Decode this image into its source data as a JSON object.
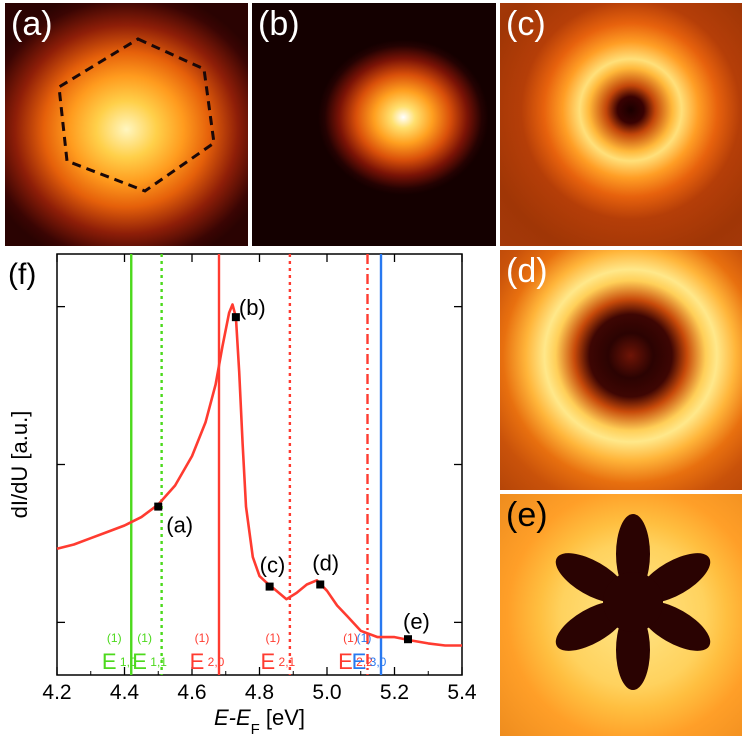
{
  "panels": {
    "a": {
      "label": "(a)"
    },
    "b": {
      "label": "(b)"
    },
    "c": {
      "label": "(c)"
    },
    "d": {
      "label": "(d)"
    },
    "e": {
      "label": "(e)"
    }
  },
  "plot_label": "(f)",
  "colors": {
    "curve": "#ff3b30",
    "green": "#4cd91c",
    "red": "#ff3b30",
    "blue": "#2878f0",
    "marker": "#000000"
  },
  "chart_data": {
    "type": "line",
    "title": "",
    "xlabel": "E-E_F [eV]",
    "ylabel": "dI/dU [a.u.]",
    "xlim": [
      4.2,
      5.4
    ],
    "ylim": [
      0,
      1
    ],
    "x_ticks": [
      "4.2",
      "4.4",
      "4.6",
      "4.8",
      "5.0",
      "5.2",
      "5.4"
    ],
    "series": [
      {
        "name": "dI/dU spectrum",
        "x": [
          4.2,
          4.25,
          4.3,
          4.35,
          4.4,
          4.45,
          4.5,
          4.55,
          4.6,
          4.64,
          4.67,
          4.69,
          4.71,
          4.72,
          4.73,
          4.74,
          4.75,
          4.76,
          4.78,
          4.8,
          4.82,
          4.85,
          4.88,
          4.91,
          4.94,
          4.97,
          5.0,
          5.03,
          5.06,
          5.1,
          5.15,
          5.2,
          5.25,
          5.3,
          5.35,
          5.4
        ],
        "y": [
          0.3,
          0.31,
          0.325,
          0.34,
          0.355,
          0.375,
          0.405,
          0.45,
          0.52,
          0.6,
          0.69,
          0.78,
          0.86,
          0.88,
          0.85,
          0.72,
          0.55,
          0.4,
          0.28,
          0.235,
          0.22,
          0.2,
          0.18,
          0.195,
          0.215,
          0.225,
          0.2,
          0.165,
          0.14,
          0.105,
          0.09,
          0.09,
          0.082,
          0.075,
          0.07,
          0.07
        ]
      }
    ],
    "markers": [
      {
        "label": "(a)",
        "x": 4.5,
        "y": 0.4
      },
      {
        "label": "(b)",
        "x": 4.73,
        "y": 0.85
      },
      {
        "label": "(c)",
        "x": 4.83,
        "y": 0.21
      },
      {
        "label": "(d)",
        "x": 4.98,
        "y": 0.215
      },
      {
        "label": "(e)",
        "x": 5.24,
        "y": 0.085
      }
    ],
    "energy_lines": [
      {
        "x": 4.42,
        "style": "solid",
        "color": "green",
        "main": "E",
        "sup": "(1)",
        "sub": "1,0"
      },
      {
        "x": 4.51,
        "style": "dotted",
        "color": "green",
        "main": "E",
        "sup": "(1)",
        "sub": "1,1"
      },
      {
        "x": 4.68,
        "style": "solid",
        "color": "red",
        "main": "E",
        "sup": "(1)",
        "sub": "2,0"
      },
      {
        "x": 4.89,
        "style": "dotted",
        "color": "red",
        "main": "E",
        "sup": "(1)",
        "sub": "2,1"
      },
      {
        "x": 5.12,
        "style": "dashdot",
        "color": "red",
        "main": "E",
        "sup": "(1)",
        "sub": "2,2"
      },
      {
        "x": 5.16,
        "style": "solid",
        "color": "blue",
        "main": "E",
        "sup": "(1)",
        "sub": "3,0"
      }
    ]
  }
}
